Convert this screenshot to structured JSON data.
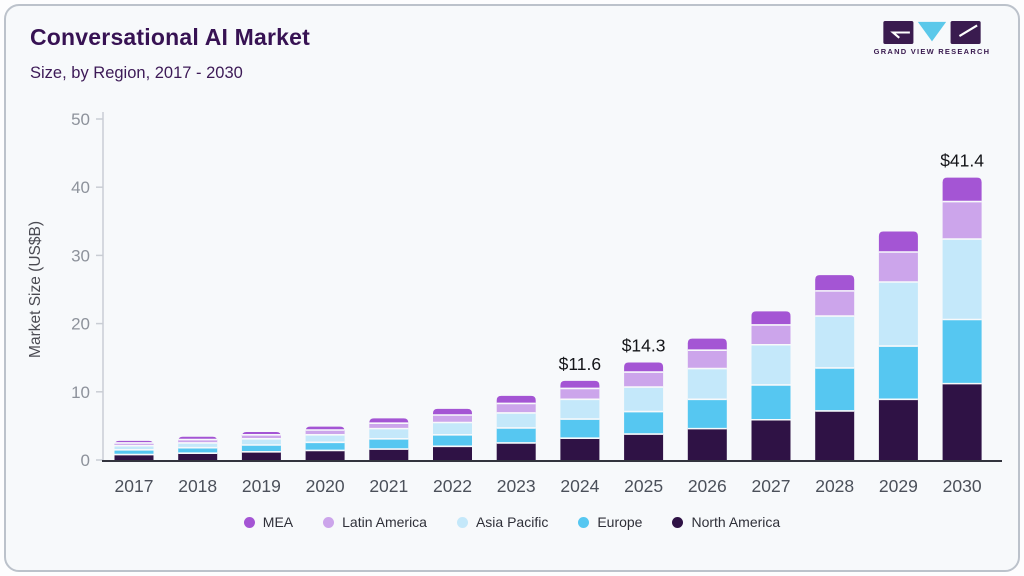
{
  "header": {
    "title": "Conversational AI Market",
    "subtitle": "Size, by Region, 2017 - 2030"
  },
  "logo": {
    "brand": "GRAND VIEW RESEARCH"
  },
  "chart_data": {
    "type": "bar",
    "stacked": true,
    "title": "Conversational AI Market",
    "subtitle": "Size, by Region, 2017 - 2030",
    "xlabel": "",
    "ylabel": "Market Size (US$B)",
    "ylim": [
      0,
      50
    ],
    "yticks": [
      0,
      10,
      20,
      30,
      40,
      50
    ],
    "grid": false,
    "legend_position": "bottom",
    "categories": [
      "2017",
      "2018",
      "2019",
      "2020",
      "2021",
      "2022",
      "2023",
      "2024",
      "2025",
      "2026",
      "2027",
      "2028",
      "2029",
      "2030"
    ],
    "stack_order": "bottom-to-top",
    "series": [
      {
        "name": "North America",
        "color": "#2f1245",
        "values": [
          0.8,
          1.0,
          1.2,
          1.4,
          1.6,
          2.0,
          2.5,
          3.2,
          3.8,
          4.6,
          5.9,
          7.2,
          8.9,
          11.2
        ]
      },
      {
        "name": "Europe",
        "color": "#56c7f1",
        "values": [
          0.7,
          0.8,
          1.0,
          1.2,
          1.5,
          1.7,
          2.2,
          2.8,
          3.3,
          4.3,
          5.1,
          6.3,
          7.8,
          9.4
        ]
      },
      {
        "name": "Asia Pacific",
        "color": "#c4e8fa",
        "values": [
          0.6,
          0.7,
          0.9,
          1.1,
          1.5,
          1.8,
          2.2,
          2.9,
          3.6,
          4.5,
          5.9,
          7.6,
          9.4,
          11.8
        ]
      },
      {
        "name": "Latin America",
        "color": "#cca5eb",
        "values": [
          0.4,
          0.5,
          0.6,
          0.7,
          0.8,
          1.1,
          1.4,
          1.6,
          2.2,
          2.7,
          2.9,
          3.7,
          4.4,
          5.5
        ]
      },
      {
        "name": "MEA",
        "color": "#a455d4",
        "values": [
          0.3,
          0.4,
          0.4,
          0.5,
          0.7,
          0.9,
          1.1,
          1.1,
          1.4,
          1.7,
          2.0,
          2.3,
          3.0,
          3.5
        ]
      }
    ],
    "legend_order": [
      "MEA",
      "Latin America",
      "Asia Pacific",
      "Europe",
      "North America"
    ],
    "annotations": [
      {
        "category": "2024",
        "label": "$11.6"
      },
      {
        "category": "2025",
        "label": "$14.3"
      },
      {
        "category": "2030",
        "label": "$41.4"
      }
    ]
  },
  "colors": {
    "card_bg": "#f7f9fb",
    "card_border": "#bcc2cb",
    "title": "#371253",
    "subtitle": "#3d1a57",
    "axis_line": "#d5d8df",
    "tick_mark": "#c9cdd4",
    "baseline": "#33343e",
    "tick_text": "#8d929b",
    "year_text": "#4b505a",
    "ylabel_text": "#4a4a52",
    "value_text": "#141519",
    "legend_text": "#2f3039",
    "logo_dark": "#3a1b4f",
    "logo_accent": "#5bc8ea"
  }
}
